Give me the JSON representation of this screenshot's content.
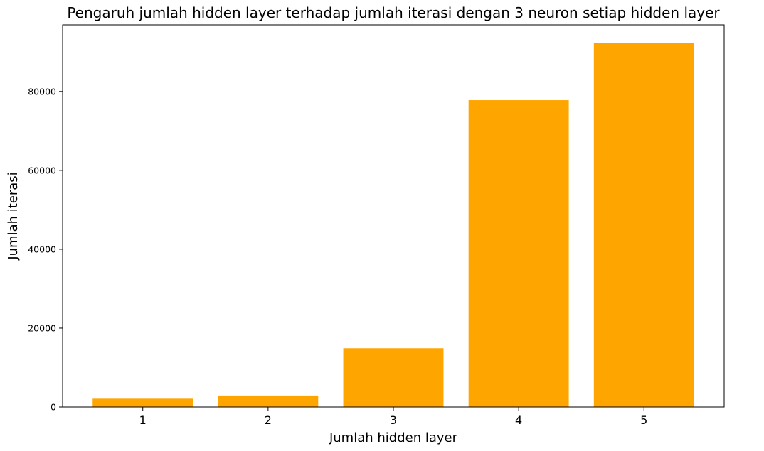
{
  "chart_data": {
    "type": "bar",
    "title": "Pengaruh jumlah hidden layer terhadap jumlah iterasi dengan 3 neuron setiap hidden layer",
    "xlabel": "Jumlah hidden layer",
    "ylabel": "Jumlah iterasi",
    "categories": [
      "1",
      "2",
      "3",
      "4",
      "5"
    ],
    "values": [
      2100,
      2900,
      14900,
      77800,
      92300
    ],
    "ylim": [
      0,
      96900
    ],
    "yticks": [
      0,
      20000,
      40000,
      60000,
      80000
    ],
    "ytick_labels": [
      "0",
      "20000",
      "40000",
      "60000",
      "80000"
    ],
    "bar_color": "#ffa500",
    "grid": false,
    "legend": "none"
  }
}
